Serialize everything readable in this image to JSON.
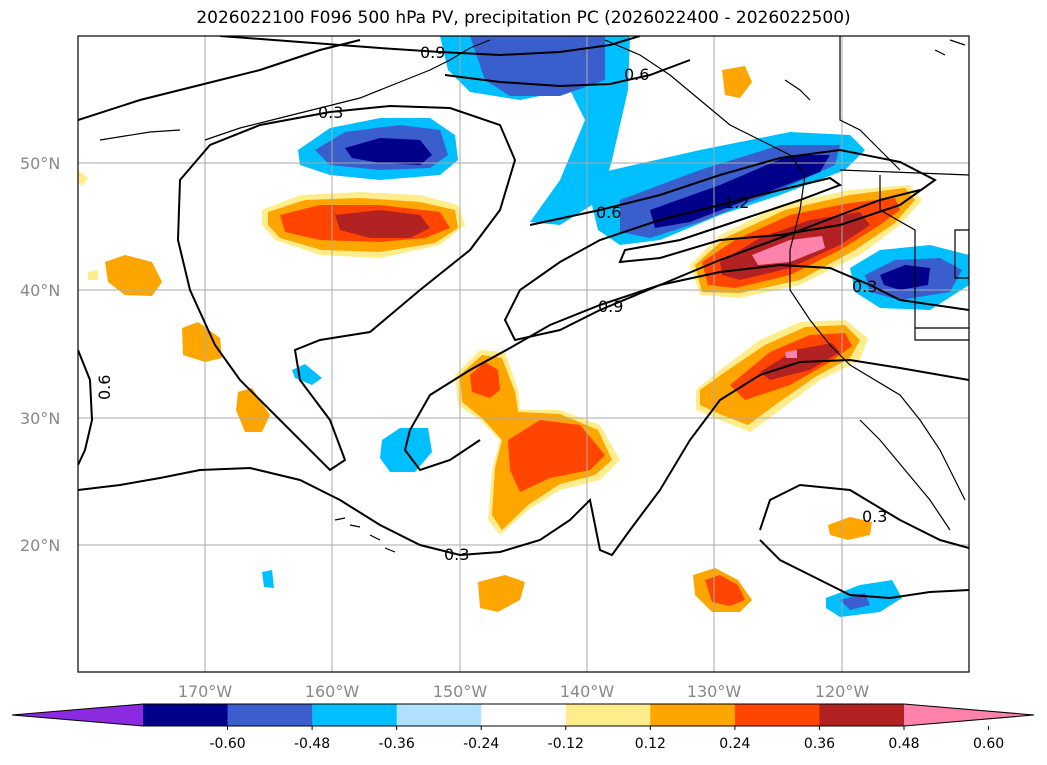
{
  "title": "2026022100 F096 500 hPa PV, precipitation PC (2026022400 - 2026022500)",
  "lat_ticks": [
    "50°N",
    "40°N",
    "30°N",
    "20°N"
  ],
  "lon_ticks": [
    "170°W",
    "160°W",
    "150°W",
    "140°W",
    "130°W",
    "120°W"
  ],
  "contour_labels": [
    "0.9",
    "0.6",
    "0.3",
    "0.6",
    "1.2",
    "0.9",
    "0.3",
    "0.6",
    "0.3",
    "0.3"
  ],
  "colorbar": {
    "levels": [
      "-0.60",
      "-0.48",
      "-0.36",
      "-0.24",
      "-0.12",
      "0.12",
      "0.24",
      "0.36",
      "0.48",
      "0.60"
    ],
    "colors": [
      "#8a2be2",
      "#00008b",
      "#3a5fcd",
      "#00bfff",
      "#b0e2ff",
      "#ffffff",
      "#ffec8b",
      "#ffa500",
      "#ff4500",
      "#b22222",
      "#ff82ab"
    ]
  },
  "palette": {
    "neg_60": "#00008b",
    "neg_48": "#3a5fcd",
    "neg_36": "#00bfff",
    "neg_24": "#b0e2ff",
    "pos_24": "#ffec8b",
    "pos_36": "#ffa500",
    "pos_48": "#ff4500",
    "pos_60": "#b22222",
    "pos_max": "#ff82ab"
  }
}
